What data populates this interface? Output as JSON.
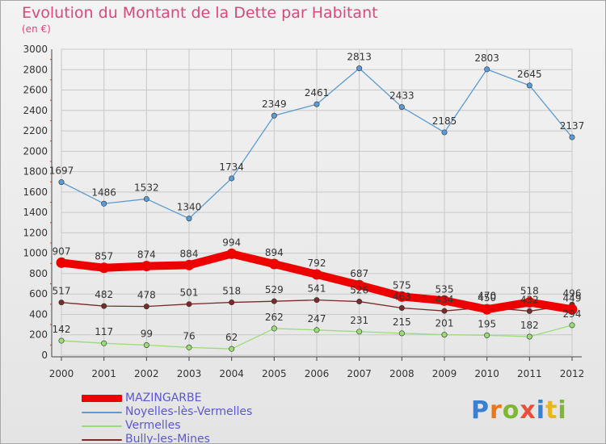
{
  "title": "Evolution du Montant de la Dette par Habitant",
  "subtitle": "(en €)",
  "logo": {
    "text": "Proxiti",
    "colors": [
      "#3a7fd0",
      "#e8771e",
      "#7fb733",
      "#e84f3b",
      "#3a7fd0",
      "#e8b71e",
      "#7fb733"
    ]
  },
  "colors": {
    "title": "#d94a7a",
    "legend_text": "#5b57d6",
    "grid": "#c8c8c8"
  },
  "chart_data": {
    "type": "line",
    "x": [
      "2000",
      "2001",
      "2002",
      "2003",
      "2004",
      "2005",
      "2006",
      "2007",
      "2008",
      "2009",
      "2010",
      "2011",
      "2012"
    ],
    "ylim": [
      0,
      3000
    ],
    "yticks": [
      0,
      200,
      400,
      600,
      800,
      1000,
      1200,
      1400,
      1600,
      1800,
      2000,
      2200,
      2400,
      2600,
      2800,
      3000
    ],
    "grid": true,
    "legend": "bottom-left",
    "series": [
      {
        "name": "MAZINGARBE",
        "color": "#ee0000",
        "values": [
          907,
          857,
          874,
          884,
          994,
          894,
          792,
          687,
          575,
          535,
          450,
          518,
          449
        ]
      },
      {
        "name": "Noyelles-lès-Vermelles",
        "color": "#5b9bd5",
        "values": [
          1697,
          1486,
          1532,
          1340,
          1734,
          2349,
          2461,
          2813,
          2433,
          2185,
          2803,
          2645,
          2137
        ]
      },
      {
        "name": "Vermelles",
        "color": "#99dd77",
        "values": [
          142,
          117,
          99,
          76,
          62,
          262,
          247,
          231,
          215,
          201,
          195,
          182,
          294
        ]
      },
      {
        "name": "Bully-les-Mines",
        "color": "#7a2a2a",
        "values": [
          517,
          482,
          478,
          501,
          518,
          529,
          541,
          526,
          463,
          434,
          470,
          432,
          496
        ]
      }
    ]
  }
}
